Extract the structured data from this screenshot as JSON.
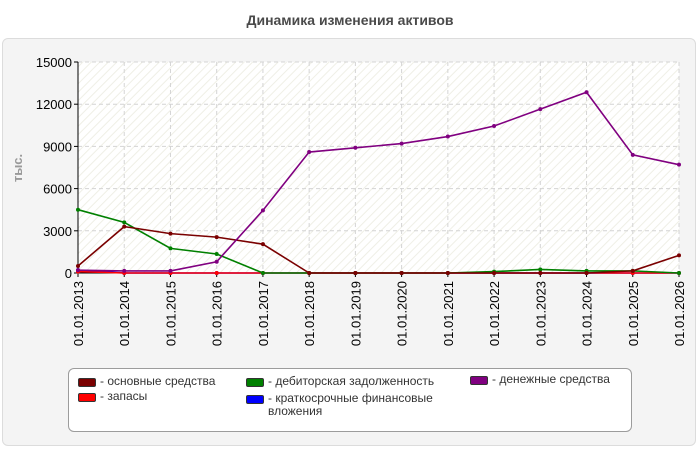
{
  "page": {
    "title": "Динамика изменения активов"
  },
  "chart_data": {
    "type": "line",
    "title": "Динамика изменения активов",
    "ylabel": "тыс.",
    "xlabel": "",
    "ylim": [
      0,
      15000
    ],
    "yticks": [
      "15000",
      "12000",
      "9000",
      "6000",
      "3000",
      "0"
    ],
    "categories": [
      "01.01.2013",
      "01.01.2014",
      "01.01.2015",
      "01.01.2016",
      "01.01.2017",
      "01.01.2018",
      "01.01.2019",
      "01.01.2020",
      "01.01.2021",
      "01.01.2022",
      "01.01.2023",
      "01.01.2024",
      "01.01.2025",
      "01.01.2026"
    ],
    "grid": true,
    "legend_position": "bottom",
    "series": [
      {
        "name": "- основные средства",
        "color": "#7a0000",
        "values": [
          500,
          3300,
          2800,
          2550,
          2050,
          0,
          0,
          0,
          0,
          0,
          0,
          0,
          150,
          1250
        ]
      },
      {
        "name": "- запасы",
        "color": "#ff0000",
        "values": [
          100,
          0,
          0,
          0,
          0,
          0,
          0,
          0,
          0,
          0,
          0,
          0,
          0,
          0
        ]
      },
      {
        "name": "- дебиторская задолженность",
        "color": "#008000",
        "values": [
          4500,
          3600,
          1750,
          1350,
          0,
          0,
          0,
          0,
          0,
          100,
          250,
          150,
          150,
          0
        ]
      },
      {
        "name": "- краткосрочные финансовые вложения",
        "color": "#0000ff",
        "values": [
          200,
          0,
          0,
          0,
          0,
          0,
          0,
          0,
          0,
          0,
          0,
          0,
          0,
          0
        ]
      },
      {
        "name": "- денежные средства",
        "color": "#800080",
        "values": [
          200,
          150,
          150,
          800,
          4450,
          8600,
          8900,
          9200,
          9700,
          10450,
          11650,
          12850,
          8400,
          7700
        ]
      }
    ]
  }
}
